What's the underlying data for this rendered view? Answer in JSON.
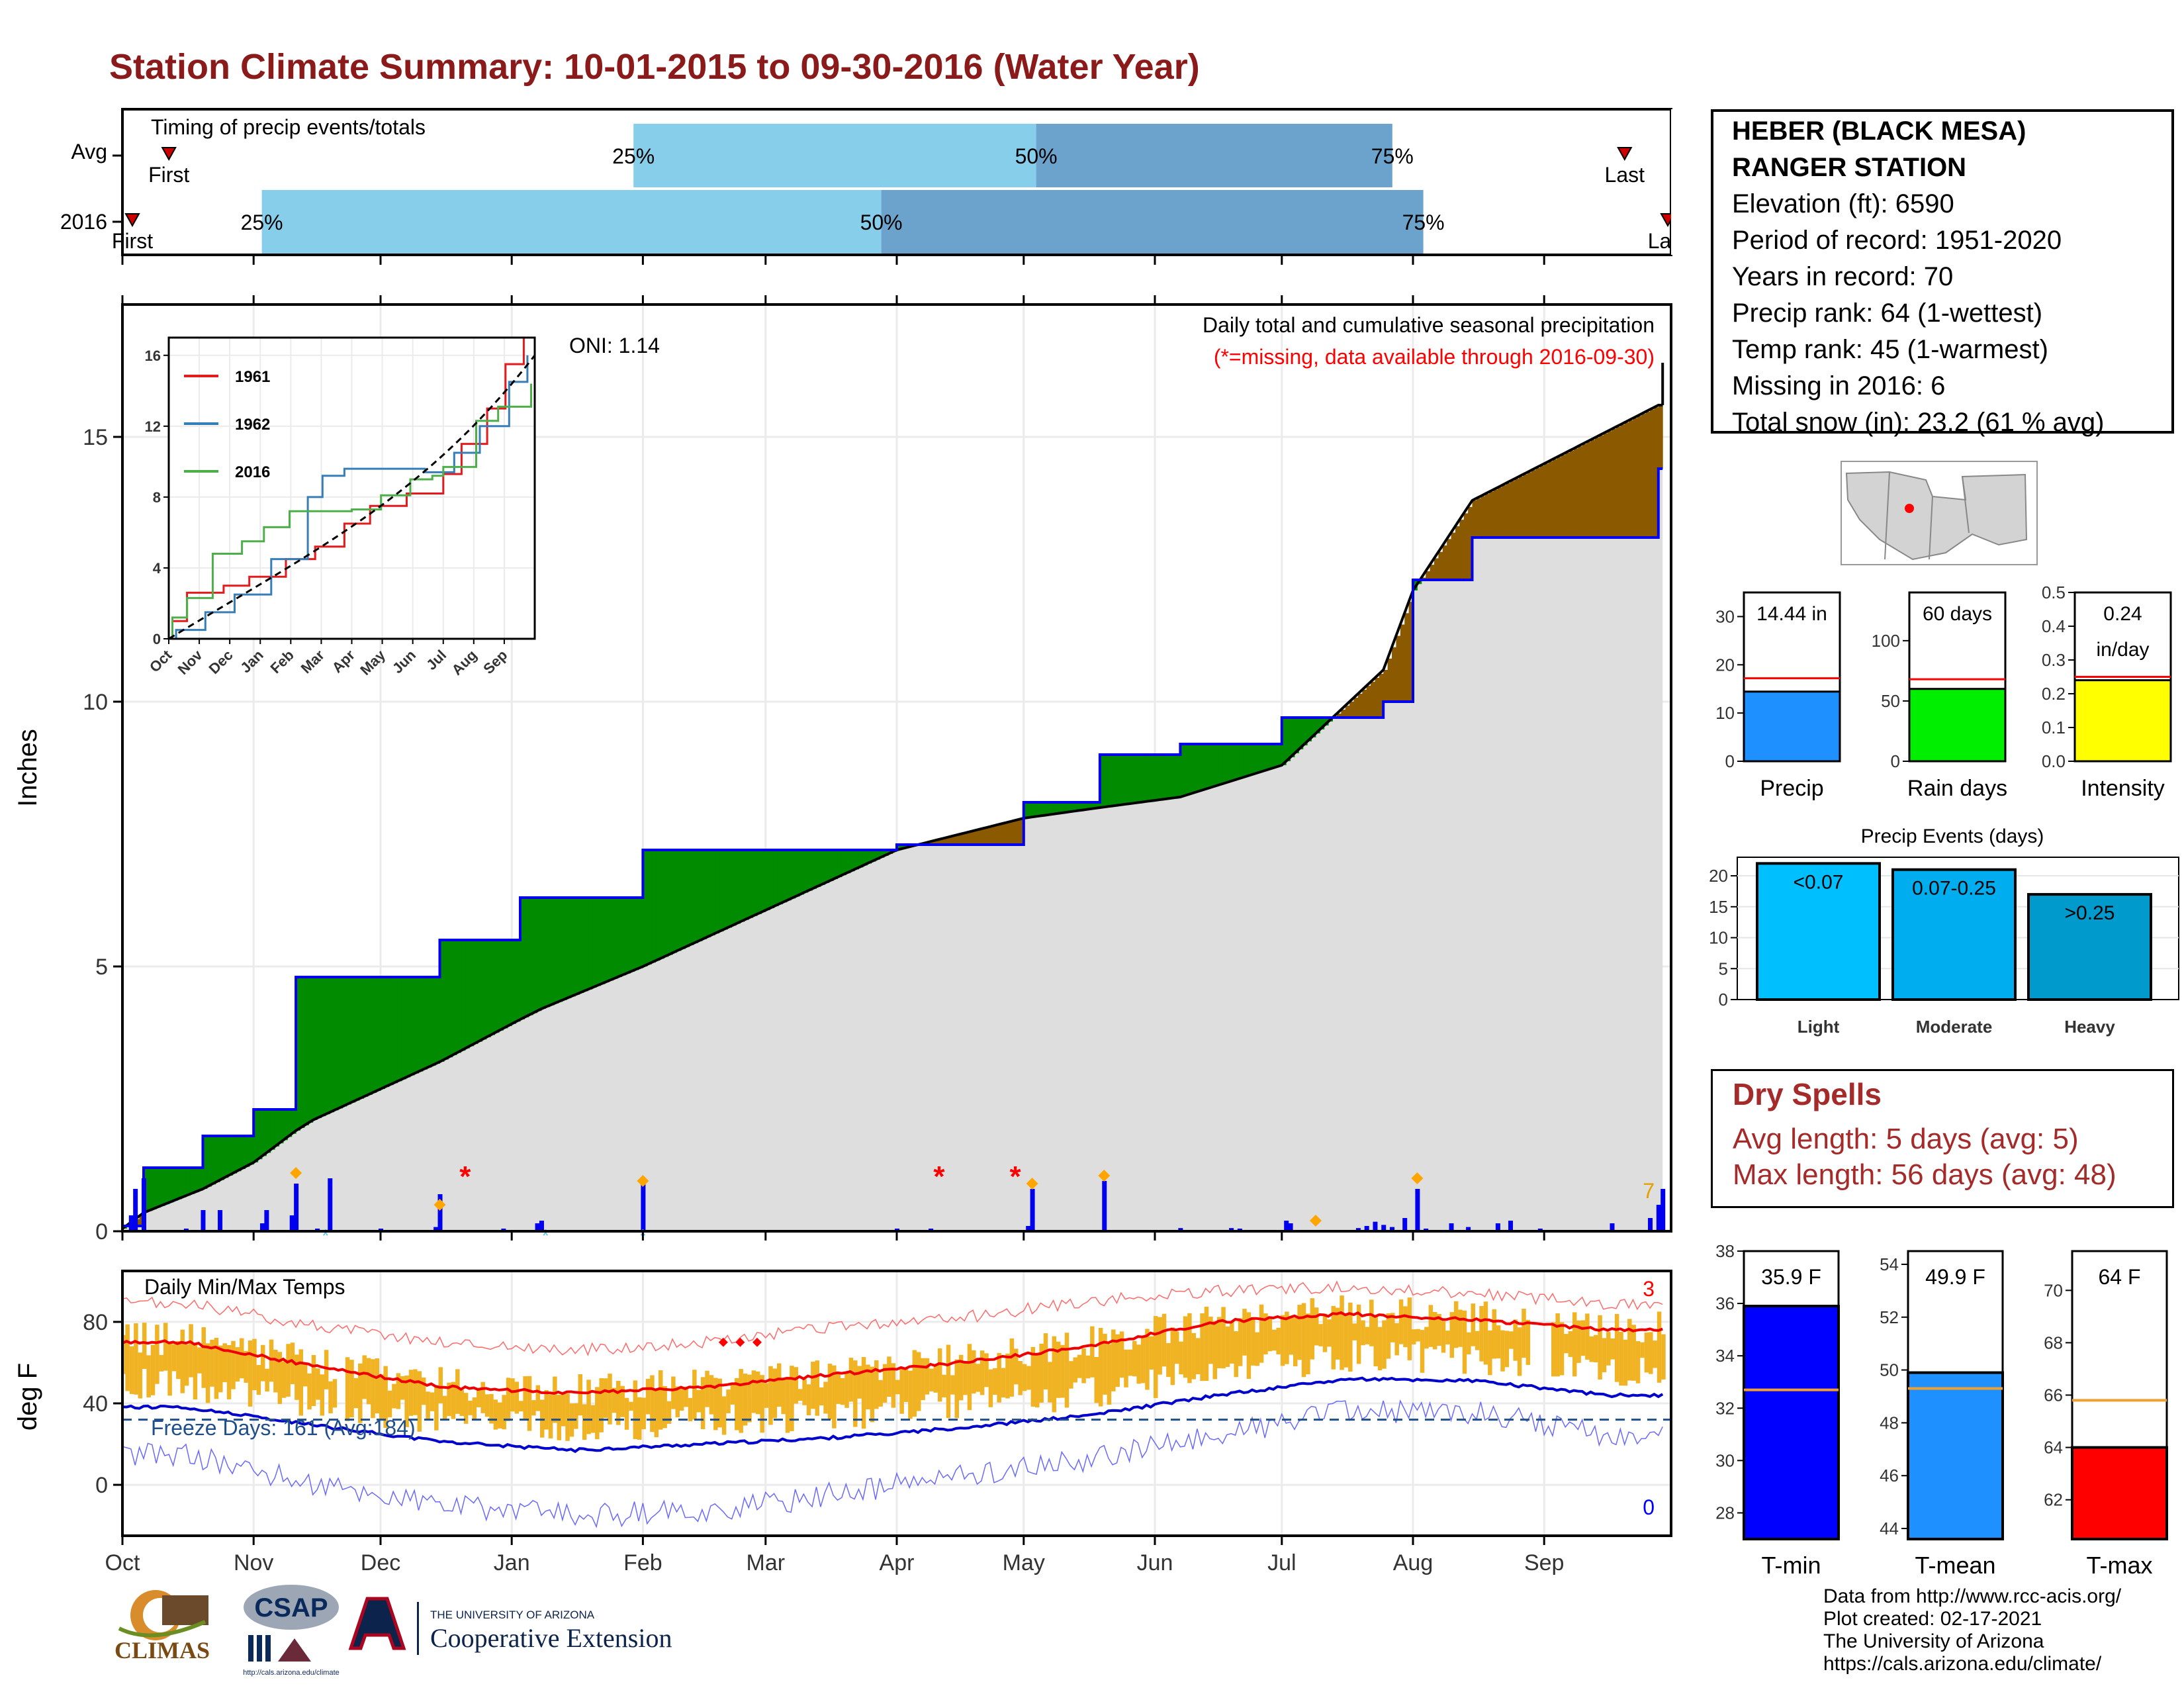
{
  "title": "Station Climate Summary: 10-01-2015 to 09-30-2016 (Water Year)",
  "timing": {
    "label": "Timing of precip events/totals",
    "rows": [
      {
        "name": "Avg",
        "first_label": "First",
        "last_label": "Last",
        "first": 0.03,
        "p25": 0.33,
        "p50": 0.59,
        "p75": 0.82,
        "last": 0.97
      },
      {
        "name": "2016",
        "first_label": "First",
        "last_label": "Last",
        "first": 0.0,
        "p25": 0.09,
        "p50": 0.49,
        "p75": 0.84,
        "last": 1.0
      }
    ],
    "pct_labels": [
      "25%",
      "50%",
      "75%"
    ]
  },
  "station": {
    "name_line1": "HEBER (BLACK MESA)",
    "name_line2": "RANGER STATION",
    "elevation": "Elevation (ft): 6590",
    "period": "Period of record: 1951-2020",
    "years": "Years in record: 70",
    "precip_rank": "Precip rank: 64 (1-wettest)",
    "temp_rank": "Temp rank: 45 (1-warmest)",
    "missing": "Missing in 2016: 6",
    "snow": "Total snow (in): 23.2 (61 % avg)"
  },
  "precip_chart": {
    "title": "Daily total and cumulative seasonal precipitation",
    "subtitle": "(*=missing, data available through 2016-09-30)",
    "ylabel": "Inches",
    "oni": "ONI: 1.14",
    "yticks": [
      "0",
      "5",
      "10",
      "15"
    ],
    "corner_value": "7"
  },
  "inset": {
    "yticks": [
      "0",
      "4",
      "8",
      "12",
      "16"
    ],
    "months": [
      "Oct",
      "Nov",
      "Dec",
      "Jan",
      "Feb",
      "Mar",
      "Apr",
      "May",
      "Jun",
      "Jul",
      "Aug",
      "Sep"
    ],
    "legend": [
      "1961",
      "1962",
      "2016"
    ],
    "colors": [
      "#E41A1C",
      "#377EB8",
      "#4DAF4A"
    ]
  },
  "temp_chart": {
    "title": "Daily Min/Max Temps",
    "ylabel": "deg F",
    "yticks": [
      "0",
      "40",
      "80"
    ],
    "freeze": "Freeze Days: 161 (Avg:184)",
    "max_count": "3",
    "min_count": "0"
  },
  "months": [
    "Oct",
    "Nov",
    "Dec",
    "Jan",
    "Feb",
    "Mar",
    "Apr",
    "May",
    "Jun",
    "Jul",
    "Aug",
    "Sep"
  ],
  "mini_bars": [
    {
      "label": "Precip",
      "value_text": "14.44 in",
      "value": 14.44,
      "avg": 17.2,
      "max": 35,
      "ticks": [
        "0",
        "10",
        "20",
        "30"
      ],
      "color": "#1E90FF"
    },
    {
      "label": "Rain days",
      "value_text": "60 days",
      "value": 60,
      "avg": 68,
      "max": 140,
      "ticks": [
        "0",
        "50",
        "100"
      ],
      "color": "#00EE00"
    },
    {
      "label": "Intensity",
      "value_text": "0.24",
      "value_text2": "in/day",
      "value": 0.24,
      "avg": 0.25,
      "max": 0.5,
      "ticks": [
        "0.0",
        "0.1",
        "0.2",
        "0.3",
        "0.4",
        "0.5"
      ],
      "color": "#FFFF00"
    }
  ],
  "events": {
    "title": "Precip Events (days)",
    "ticks": [
      "0",
      "5",
      "10",
      "15",
      "20"
    ],
    "bars": [
      {
        "label": "Light",
        "range": "<0.07",
        "value": 22,
        "color": "#00BFFF"
      },
      {
        "label": "Moderate",
        "range": "0.07-0.25",
        "value": 21,
        "color": "#00AEEF"
      },
      {
        "label": "Heavy",
        "range": ">0.25",
        "value": 17,
        "color": "#009ACD"
      }
    ]
  },
  "dry_spells": {
    "title": "Dry Spells",
    "avg_line": "Avg length: 5 days (avg: 5)",
    "max_line": "Max length: 56 days (avg: 48)"
  },
  "temp_bars": [
    {
      "label": "T-min",
      "value_text": "35.9 F",
      "value": 35.9,
      "avg": 32.7,
      "min": 27,
      "max": 38,
      "ticks": [
        "28",
        "30",
        "32",
        "34",
        "36",
        "38"
      ],
      "color": "#0000FF"
    },
    {
      "label": "T-mean",
      "value_text": "49.9 F",
      "value": 49.9,
      "avg": 49.3,
      "min": 43.6,
      "max": 54.5,
      "ticks": [
        "44",
        "46",
        "48",
        "50",
        "52",
        "54"
      ],
      "color": "#1E90FF"
    },
    {
      "label": "T-max",
      "value_text": "64 F",
      "value": 64.0,
      "avg": 65.8,
      "min": 60.5,
      "max": 71.5,
      "ticks": [
        "62",
        "64",
        "66",
        "68",
        "70"
      ],
      "color": "#FF0000"
    }
  ],
  "credits": {
    "line1": "Data from http://www.rcc-acis.org/",
    "line2": "Plot created: 02-17-2021",
    "line3": "The University of Arizona",
    "line4": "https://cals.arizona.edu/climate/"
  },
  "logos": {
    "climas": "CLIMAS",
    "csap": "CSAP",
    "csap_url": "http://cals.arizona.edu/climate",
    "ua_small": "THE UNIVERSITY OF ARIZONA",
    "ua_big": "Cooperative Extension"
  },
  "chart_data": [
    {
      "type": "area",
      "title": "Daily total and cumulative seasonal precipitation",
      "ylabel": "Inches",
      "x": [
        "2015-10-01",
        "2015-10-06",
        "2015-10-20",
        "2015-11-01",
        "2015-11-11",
        "2015-11-15",
        "2015-12-15",
        "2016-01-03",
        "2016-01-08",
        "2016-02-01",
        "2016-04-01",
        "2016-05-01",
        "2016-05-19",
        "2016-06-07",
        "2016-07-01",
        "2016-07-25",
        "2016-08-01",
        "2016-08-15",
        "2016-09-28"
      ],
      "series": [
        {
          "name": "2016 cumulative",
          "values": [
            0.1,
            1.2,
            1.8,
            2.3,
            4.8,
            4.8,
            5.5,
            6.3,
            6.3,
            7.2,
            7.3,
            8.1,
            9.0,
            9.2,
            9.7,
            10.0,
            12.3,
            13.1,
            14.4
          ]
        },
        {
          "name": "Average cumulative",
          "values": [
            0.05,
            0.35,
            0.8,
            1.3,
            1.9,
            2.1,
            3.2,
            4.0,
            4.2,
            5.0,
            7.2,
            7.8,
            8.0,
            8.2,
            8.8,
            10.6,
            12.1,
            13.8,
            15.6
          ]
        }
      ],
      "ylim": [
        0,
        17.5
      ]
    },
    {
      "type": "line",
      "title": "Daily Min/Max Temps",
      "ylabel": "deg F",
      "x": [
        "Oct",
        "Nov",
        "Dec",
        "Jan",
        "Feb",
        "Mar",
        "Apr",
        "May",
        "Jun",
        "Jul",
        "Aug",
        "Sep"
      ],
      "series": [
        {
          "name": "Avg max",
          "values": [
            70,
            58,
            48,
            45,
            48,
            54,
            60,
            68,
            80,
            84,
            81,
            76
          ]
        },
        {
          "name": "Avg min",
          "values": [
            38,
            29,
            21,
            17,
            20,
            23,
            28,
            34,
            44,
            52,
            51,
            44
          ]
        },
        {
          "name": "Record max",
          "values": [
            89,
            78,
            70,
            66,
            70,
            77,
            82,
            90,
            95,
            97,
            94,
            89
          ]
        },
        {
          "name": "Record min",
          "values": [
            15,
            0,
            -10,
            -15,
            -13,
            -5,
            5,
            12,
            25,
            36,
            36,
            24
          ]
        }
      ],
      "ylim": [
        -25,
        105
      ]
    }
  ]
}
